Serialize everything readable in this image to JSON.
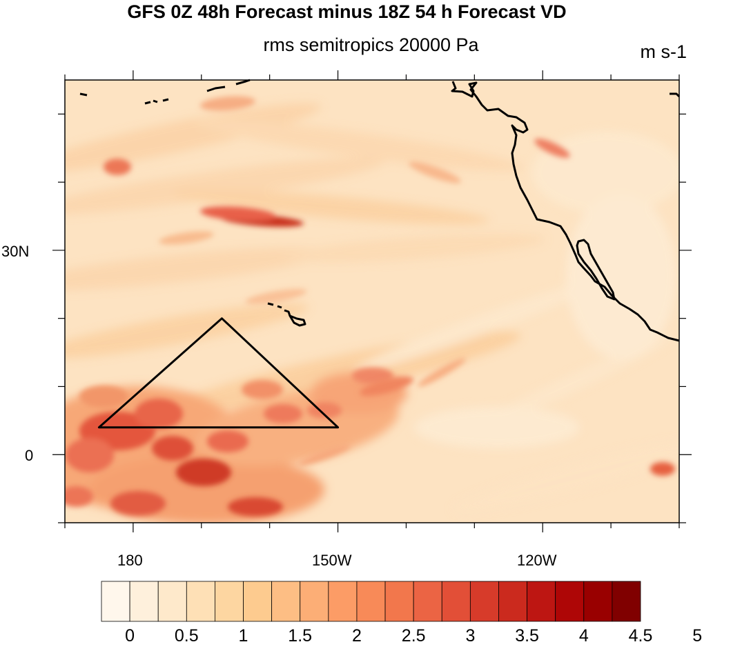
{
  "title": "GFS 0Z 48h Forecast minus 18Z 54 h Forecast VD",
  "subtitle": "rms semitropics 20000 Pa",
  "units": "m s-1",
  "lat_labels": [
    "30N",
    "0"
  ],
  "lon_labels": [
    "180",
    "150W",
    "120W"
  ],
  "colorbar": {
    "labels": [
      "0",
      "0.5",
      "1",
      "1.5",
      "2",
      "2.5",
      "3",
      "3.5",
      "4",
      "4.5",
      "5"
    ],
    "colors": [
      "#fff7ec",
      "#fef0dc",
      "#fee9cb",
      "#fee0b6",
      "#fdd6a1",
      "#fdcb8f",
      "#fdbe84",
      "#fcae76",
      "#fc9c66",
      "#f88a58",
      "#f2774c",
      "#eb6444",
      "#e24f37",
      "#d73b2a",
      "#cb2a1e",
      "#bd1612",
      "#ae0606",
      "#990000",
      "#800000"
    ],
    "range": [
      0,
      5
    ],
    "step": 0.25
  },
  "map": {
    "lat_range": [
      -10,
      55
    ],
    "lon_range": [
      170,
      260
    ],
    "triangle": [
      {
        "lon": 193,
        "lat": 20
      },
      {
        "lon": 175,
        "lat": 4
      },
      {
        "lon": 210,
        "lat": 4
      }
    ]
  }
}
